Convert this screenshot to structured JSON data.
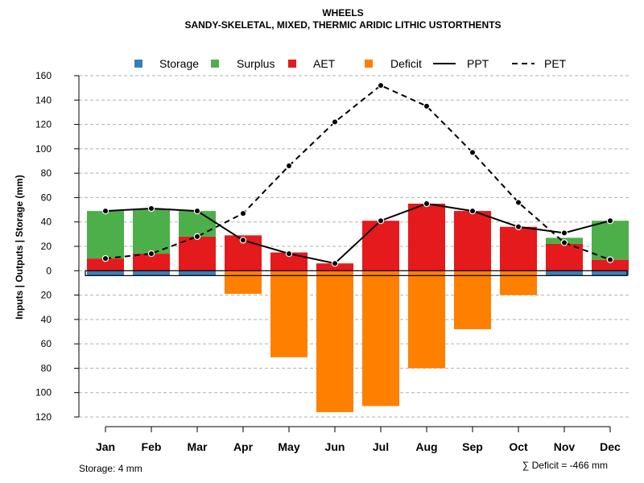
{
  "chart_data": {
    "type": "bar",
    "title": "WHEELS",
    "subtitle": "SANDY-SKELETAL, MIXED, THERMIC ARIDIC LITHIC USTORTHENTS",
    "ylabel": "Inputs | Outputs | Storage    (mm)",
    "ylim": [
      -120,
      160
    ],
    "y_ticks": [
      160,
      140,
      120,
      100,
      80,
      60,
      40,
      20,
      0,
      -20,
      -40,
      -60,
      -80,
      -100,
      -120
    ],
    "y_tick_labels": [
      "160",
      "140",
      "120",
      "100",
      "80",
      "60",
      "40",
      "20",
      "0",
      "20",
      "40",
      "60",
      "80",
      "100",
      "120"
    ],
    "grid": true,
    "legend_position": "top",
    "categories": [
      "Jan",
      "Feb",
      "Mar",
      "Apr",
      "May",
      "Jun",
      "Jul",
      "Aug",
      "Sep",
      "Oct",
      "Nov",
      "Dec"
    ],
    "series": [
      {
        "name": "Storage",
        "kind": "bar",
        "color": "#377EB8",
        "values": [
          -4,
          -4,
          -4,
          0,
          0,
          0,
          0,
          0,
          0,
          0,
          -4,
          -4
        ]
      },
      {
        "name": "Surplus",
        "kind": "bar",
        "color": "#4DAF4A",
        "values": [
          39,
          37,
          21,
          0,
          0,
          0,
          0,
          0,
          0,
          0,
          5,
          32
        ]
      },
      {
        "name": "AET",
        "kind": "bar",
        "color": "#E41A1C",
        "values": [
          10,
          14,
          28,
          29,
          15,
          6,
          41,
          55,
          49,
          36,
          22,
          9
        ]
      },
      {
        "name": "Deficit",
        "kind": "bar",
        "color": "#FF7F00",
        "values": [
          0,
          0,
          0,
          -19,
          -71,
          -116,
          -111,
          -80,
          -48,
          -20,
          0,
          0
        ]
      },
      {
        "name": "PPT",
        "kind": "line",
        "style": "solid",
        "color": "#000000",
        "values": [
          49,
          51,
          49,
          25,
          14,
          6,
          41,
          55,
          49,
          36,
          31,
          41
        ]
      },
      {
        "name": "PET",
        "kind": "line",
        "style": "dashed",
        "color": "#000000",
        "values": [
          10,
          14,
          28,
          47,
          86,
          122,
          152,
          135,
          97,
          56,
          23,
          9
        ]
      }
    ],
    "annotations": {
      "storage_note": "Storage: 4 mm",
      "deficit_note": "∑ Deficit = -466 mm"
    }
  }
}
